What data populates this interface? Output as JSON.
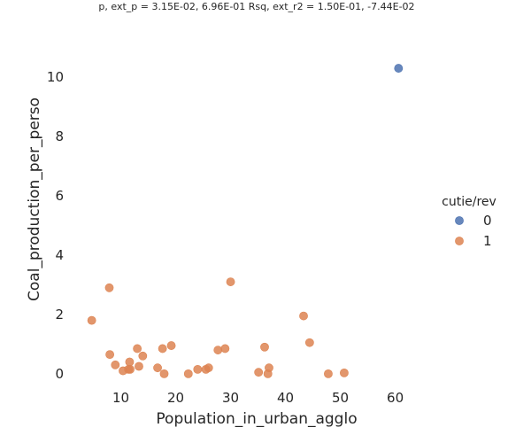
{
  "chart_data": {
    "type": "scatter",
    "title": "p, ext_p = 3.15E-02, 6.96E-01 Rsq, ext_r2 = 1.50E-01, -7.44E-02",
    "xlabel": "Population_in_urban_agglo",
    "ylabel": "Coal_production_per_perso",
    "xlim": [
      2.5,
      67
    ],
    "ylim": [
      -0.9,
      10.75
    ],
    "xticks": [
      "10",
      "20",
      "30",
      "40",
      "50",
      "60"
    ],
    "xtick_values": [
      10,
      20,
      30,
      40,
      50,
      60
    ],
    "yticks": [
      "0",
      "2",
      "4",
      "6",
      "8",
      "10"
    ],
    "ytick_values": [
      0,
      2,
      4,
      6,
      8,
      10
    ],
    "grid": false,
    "legend": {
      "title": "cutie/rev",
      "placement": "right",
      "entries": [
        {
          "label": "0",
          "color": "#4c72b0"
        },
        {
          "label": "1",
          "color": "#dd8452"
        }
      ]
    },
    "series": [
      {
        "name": "0",
        "color": "#4c72b0",
        "points": [
          [
            60.6,
            10.3
          ]
        ]
      },
      {
        "name": "1",
        "color": "#dd8452",
        "points": [
          [
            4.7,
            1.8
          ],
          [
            7.9,
            2.9
          ],
          [
            8.0,
            0.65
          ],
          [
            9.0,
            0.3
          ],
          [
            10.4,
            0.1
          ],
          [
            11.4,
            0.15
          ],
          [
            11.6,
            0.4
          ],
          [
            11.7,
            0.15
          ],
          [
            13.0,
            0.85
          ],
          [
            13.3,
            0.25
          ],
          [
            14.0,
            0.6
          ],
          [
            16.7,
            0.2
          ],
          [
            17.6,
            0.85
          ],
          [
            17.9,
            0.0
          ],
          [
            19.2,
            0.95
          ],
          [
            22.3,
            0.0
          ],
          [
            24.0,
            0.15
          ],
          [
            25.5,
            0.15
          ],
          [
            26.0,
            0.2
          ],
          [
            27.7,
            0.8
          ],
          [
            29.0,
            0.85
          ],
          [
            30.0,
            3.1
          ],
          [
            35.1,
            0.05
          ],
          [
            36.2,
            0.9
          ],
          [
            36.8,
            0.0
          ],
          [
            37.0,
            0.2
          ],
          [
            43.3,
            1.95
          ],
          [
            44.4,
            1.05
          ],
          [
            47.8,
            0.0
          ],
          [
            50.7,
            0.03
          ]
        ]
      }
    ]
  }
}
